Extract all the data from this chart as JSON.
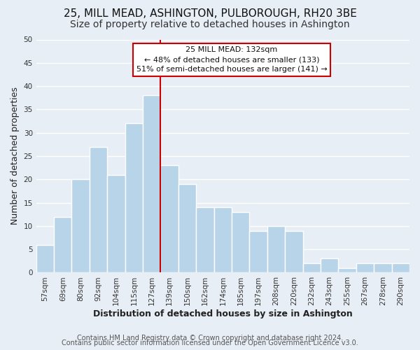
{
  "title": "25, MILL MEAD, ASHINGTON, PULBOROUGH, RH20 3BE",
  "subtitle": "Size of property relative to detached houses in Ashington",
  "xlabel": "Distribution of detached houses by size in Ashington",
  "ylabel": "Number of detached properties",
  "bar_labels": [
    "57sqm",
    "69sqm",
    "80sqm",
    "92sqm",
    "104sqm",
    "115sqm",
    "127sqm",
    "139sqm",
    "150sqm",
    "162sqm",
    "174sqm",
    "185sqm",
    "197sqm",
    "208sqm",
    "220sqm",
    "232sqm",
    "243sqm",
    "255sqm",
    "267sqm",
    "278sqm",
    "290sqm"
  ],
  "bar_values": [
    6,
    12,
    20,
    27,
    21,
    32,
    38,
    23,
    19,
    14,
    14,
    13,
    9,
    10,
    9,
    2,
    3,
    1,
    2,
    2,
    2
  ],
  "bar_color": "#b8d4e8",
  "bar_edge_color": "#ffffff",
  "highlight_bar_index": 6,
  "highlight_line_color": "#cc0000",
  "annotation_title": "25 MILL MEAD: 132sqm",
  "annotation_line1": "← 48% of detached houses are smaller (133)",
  "annotation_line2": "51% of semi-detached houses are larger (141) →",
  "annotation_box_facecolor": "#ffffff",
  "annotation_box_edgecolor": "#cc0000",
  "ylim": [
    0,
    50
  ],
  "yticks": [
    0,
    5,
    10,
    15,
    20,
    25,
    30,
    35,
    40,
    45,
    50
  ],
  "footer_line1": "Contains HM Land Registry data © Crown copyright and database right 2024.",
  "footer_line2": "Contains public sector information licensed under the Open Government Licence v3.0.",
  "background_color": "#e8eef5",
  "plot_bg_color": "#e8eef5",
  "grid_color": "#ffffff",
  "title_fontsize": 11,
  "subtitle_fontsize": 10,
  "axis_label_fontsize": 9,
  "tick_fontsize": 7.5,
  "footer_fontsize": 7
}
